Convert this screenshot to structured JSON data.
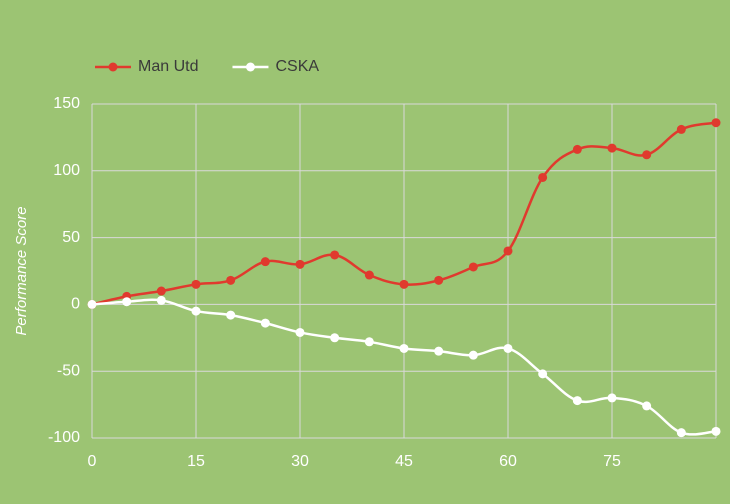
{
  "chart_data": {
    "type": "line",
    "y_label": "Performance Score",
    "x": [
      0,
      5,
      10,
      15,
      20,
      25,
      30,
      35,
      40,
      45,
      50,
      55,
      60,
      65,
      70,
      75,
      80,
      85,
      90
    ],
    "series": [
      {
        "name": "Man Utd",
        "color": "#e03a2e",
        "values": [
          0,
          6,
          10,
          15,
          18,
          32,
          30,
          37,
          22,
          15,
          18,
          28,
          40,
          95,
          116,
          117,
          112,
          131,
          136
        ]
      },
      {
        "name": "CSKA",
        "color": "#ffffff",
        "values": [
          0,
          2,
          3,
          -5,
          -8,
          -14,
          -21,
          -25,
          -28,
          -33,
          -35,
          -38,
          -33,
          -52,
          -72,
          -70,
          -76,
          -96,
          -95
        ]
      }
    ],
    "xlim": [
      0,
      90
    ],
    "xticks": [
      0,
      15,
      30,
      45,
      60,
      75
    ],
    "ylim": [
      -100,
      150
    ],
    "yticks": [
      -100,
      -50,
      0,
      50,
      100,
      150
    ],
    "grid": true,
    "legend": "top-left"
  }
}
